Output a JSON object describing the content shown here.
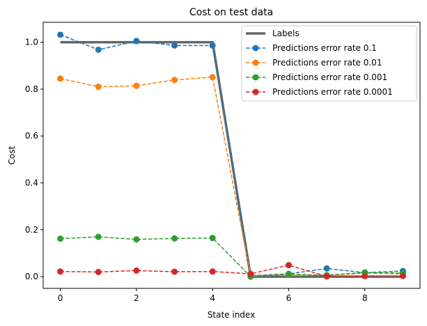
{
  "chart_data": {
    "type": "line",
    "title": "Cost on test data",
    "xlabel": "State index",
    "ylabel": "Cost",
    "xlim": [
      -0.45,
      9.45
    ],
    "ylim": [
      -0.05,
      1.085
    ],
    "xticks": [
      0,
      2,
      4,
      6,
      8
    ],
    "yticks": [
      0.0,
      0.2,
      0.4,
      0.6,
      0.8,
      1.0
    ],
    "xtick_labels": [
      "0",
      "2",
      "4",
      "6",
      "8"
    ],
    "ytick_labels": [
      "0.0",
      "0.2",
      "0.4",
      "0.6",
      "0.8",
      "1.0"
    ],
    "grid": false,
    "legend_position": "top-right",
    "x": [
      0,
      1,
      2,
      3,
      4,
      5,
      6,
      7,
      8,
      9
    ],
    "series": [
      {
        "name": "Labels",
        "style": "solid",
        "markers": false,
        "color": "#666666",
        "values": [
          1,
          1,
          1,
          1,
          1,
          0,
          0,
          0,
          0,
          0
        ]
      },
      {
        "name": "Predictions error rate 0.1",
        "style": "dashed",
        "markers": true,
        "color": "#1f77b4",
        "values": [
          1.032,
          0.968,
          1.005,
          0.986,
          0.986,
          0.005,
          0.012,
          0.035,
          0.017,
          0.024
        ]
      },
      {
        "name": "Predictions error rate 0.01",
        "style": "dashed",
        "markers": true,
        "color": "#ff7f0e",
        "values": [
          0.845,
          0.81,
          0.814,
          0.839,
          0.851,
          0.003,
          0.01,
          0.006,
          0.015,
          0.012
        ]
      },
      {
        "name": "Predictions error rate 0.001",
        "style": "dashed",
        "markers": true,
        "color": "#2ca02c",
        "values": [
          0.162,
          0.17,
          0.159,
          0.163,
          0.165,
          0.0,
          0.011,
          0.006,
          0.018,
          0.015
        ]
      },
      {
        "name": "Predictions error rate 0.0001",
        "style": "dashed",
        "markers": true,
        "color": "#d62728",
        "values": [
          0.022,
          0.02,
          0.026,
          0.021,
          0.022,
          0.012,
          0.049,
          0.001,
          0.002,
          0.003
        ]
      }
    ]
  }
}
